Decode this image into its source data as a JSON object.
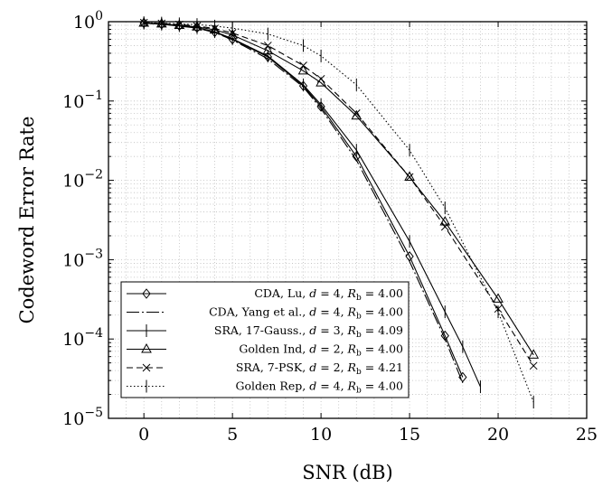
{
  "chart_data": {
    "type": "line",
    "xlabel": "SNR (dB)",
    "ylabel": "Codeword Error Rate",
    "xlim": [
      -2,
      25
    ],
    "ylim": [
      1e-05,
      1
    ],
    "yscale": "log",
    "grid": true,
    "legend_position": "bottom-left",
    "xticks": [
      {
        "value": 0,
        "label": "0"
      },
      {
        "value": 5,
        "label": "5"
      },
      {
        "value": 10,
        "label": "10"
      },
      {
        "value": 15,
        "label": "15"
      },
      {
        "value": 20,
        "label": "20"
      },
      {
        "value": 25,
        "label": "25"
      }
    ],
    "yticks": [
      {
        "value": 1,
        "base": "10",
        "exp": "0"
      },
      {
        "value": 0.1,
        "base": "10",
        "exp": "−1"
      },
      {
        "value": 0.01,
        "base": "10",
        "exp": "−2"
      },
      {
        "value": 0.001,
        "base": "10",
        "exp": "−3"
      },
      {
        "value": 0.0001,
        "base": "10",
        "exp": "−4"
      },
      {
        "value": 1e-05,
        "base": "10",
        "exp": "−5"
      }
    ],
    "series": [
      {
        "name": "CDA, Lu, d = 4, Rb = 4.00",
        "legend": {
          "label": "CDA, Lu, ",
          "d": "4",
          "rb": "4.00"
        },
        "dash": "none",
        "marker": "diamond",
        "x": [
          0,
          1,
          2,
          3,
          4,
          5,
          7,
          9,
          10,
          12,
          15,
          17,
          18
        ],
        "y": [
          0.96,
          0.93,
          0.89,
          0.84,
          0.74,
          0.6,
          0.36,
          0.155,
          0.085,
          0.02,
          0.0011,
          0.00011,
          3.3e-05
        ]
      },
      {
        "name": "CDA, Yang et al., d = 4, Rb = 4.00",
        "legend": {
          "label": "CDA, Yang et al., ",
          "d": "4",
          "rb": "4.00"
        },
        "dash": "14 3 2 3",
        "marker": "none",
        "x": [
          0,
          1,
          2,
          3,
          4,
          5,
          7,
          9,
          10,
          12,
          15,
          17,
          18
        ],
        "y": [
          0.96,
          0.93,
          0.88,
          0.83,
          0.73,
          0.59,
          0.34,
          0.15,
          0.08,
          0.018,
          0.00095,
          0.0001,
          2.8e-05
        ]
      },
      {
        "name": "SRA, 17-Gauss., d = 3, Rb = 4.09",
        "legend": {
          "label": "SRA, 17-Gauss., ",
          "d": "3",
          "rb": "4.09"
        },
        "dash": "none",
        "marker": "vbar",
        "x": [
          0,
          1,
          2,
          3,
          4,
          5,
          7,
          9,
          10,
          12,
          15,
          17,
          18,
          19
        ],
        "y": [
          0.96,
          0.93,
          0.89,
          0.84,
          0.75,
          0.61,
          0.37,
          0.16,
          0.09,
          0.024,
          0.0017,
          0.00022,
          8e-05,
          2.5e-05
        ]
      },
      {
        "name": "Golden Ind, d = 2, Rb = 4.00",
        "legend": {
          "label": "Golden Ind, ",
          "d": "2",
          "rb": "4.00"
        },
        "dash": "none",
        "marker": "triangle",
        "x": [
          0,
          1,
          2,
          3,
          4,
          5,
          7,
          9,
          10,
          12,
          15,
          17,
          20,
          22
        ],
        "y": [
          0.96,
          0.94,
          0.9,
          0.86,
          0.79,
          0.68,
          0.43,
          0.24,
          0.17,
          0.065,
          0.011,
          0.003,
          0.00032,
          6.3e-05
        ]
      },
      {
        "name": "SRA, 7-PSK, d = 2, Rb = 4.21",
        "legend": {
          "label": "SRA, 7-PSK, ",
          "d": "2",
          "rb": "4.21"
        },
        "dash": "7 4",
        "marker": "cross",
        "x": [
          0,
          1,
          2,
          3,
          4,
          5,
          7,
          9,
          10,
          12,
          15,
          17,
          20,
          22
        ],
        "y": [
          0.97,
          0.95,
          0.92,
          0.88,
          0.82,
          0.72,
          0.5,
          0.28,
          0.19,
          0.07,
          0.011,
          0.0026,
          0.00024,
          4.6e-05
        ]
      },
      {
        "name": "Golden Rep, d = 4, Rb = 4.00",
        "legend": {
          "label": "Golden Rep, ",
          "d": "4",
          "rb": "4.00"
        },
        "dash": "1.5 2.5",
        "marker": "vbar",
        "x": [
          0,
          1,
          2,
          3,
          4,
          5,
          7,
          9,
          10,
          12,
          15,
          17,
          20,
          22
        ],
        "y": [
          0.97,
          0.96,
          0.94,
          0.92,
          0.88,
          0.83,
          0.7,
          0.5,
          0.37,
          0.16,
          0.024,
          0.0045,
          0.00022,
          1.6e-05
        ]
      }
    ]
  }
}
